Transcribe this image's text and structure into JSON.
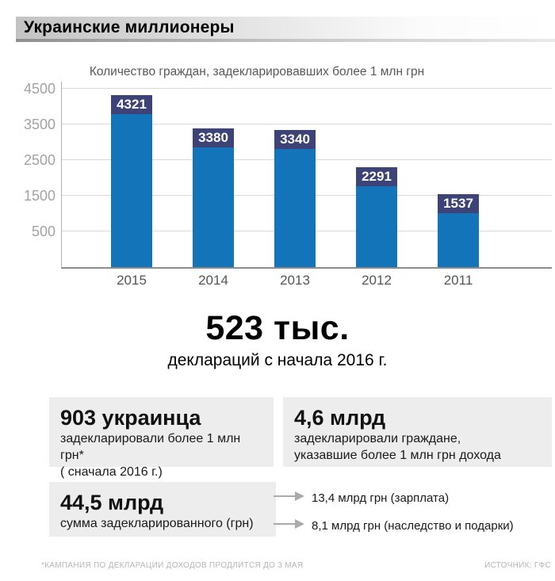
{
  "header": {
    "title": "Украинские миллионеры"
  },
  "chart_data": {
    "type": "bar",
    "title": "Количество граждан, задекларировавших более 1 млн грн",
    "categories": [
      "2015",
      "2014",
      "2013",
      "2012",
      "2011"
    ],
    "values": [
      4321,
      3380,
      3340,
      2291,
      1537
    ],
    "xlabel": "",
    "ylabel": "",
    "y_ticks": [
      4500,
      3500,
      2500,
      1500,
      500
    ],
    "ylim": [
      -500,
      4500
    ],
    "grid": true,
    "legend": "none",
    "bar_color": "#1474ba",
    "value_label_bg_color": "#3d4277",
    "value_label_text_color": "#ffffff"
  },
  "headline": {
    "value": "523 тыс.",
    "caption": "деклараций с начала 2016 г."
  },
  "stats": {
    "box1": {
      "value": "903 украинца",
      "line1": "задекларировали более 1 млн грн*",
      "line2": "( сначала 2016 г.)"
    },
    "box2": {
      "value": "4,6 млрд",
      "line1": "задекларировали граждане,",
      "line2": "указавшие более 1 млн грн дохода"
    },
    "box3": {
      "value": "44,5 млрд",
      "line1": "сумма задекларированного (грн)"
    },
    "arrows": [
      {
        "icon": "arrow-right-icon",
        "label": "13,4 млрд грн (зарплата)"
      },
      {
        "icon": "arrow-right-icon",
        "label": "8,1 млрд грн (наследство и подарки)"
      }
    ]
  },
  "footer": {
    "note": "*КАМПАНИЯ ПО ДЕКЛАРАЦИИ ДОХОДОВ ПРОДЛИТСЯ ДО 3 МАЯ",
    "source": "ИСТОЧНИК: ГФС"
  },
  "colors": {
    "bar": "#1474ba",
    "bar_label_bg": "#3d4277",
    "box_bg": "#ededed",
    "arrow": "#ababab"
  }
}
